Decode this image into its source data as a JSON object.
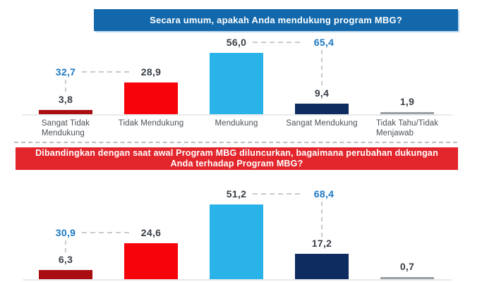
{
  "colors": {
    "header1_bg": "#1268ab",
    "header2_bg": "#e2262c",
    "annotation_blue": "#1b78c3",
    "value_text": "#3a3f46",
    "category_text": "#4b5158",
    "bar_dark_red": "#a90d12",
    "bar_red": "#f7030a",
    "bar_cyan": "#29b3e9",
    "bar_navy": "#0e2c5f",
    "bar_gray": "#9ba0a5"
  },
  "chart_data": [
    {
      "type": "bar",
      "title": "Secara umum, apakah Anda mendukung program MBG?",
      "categories": [
        "Sangat Tidak\nMendukung",
        "Tidak Mendukung",
        "Mendukung",
        "Sangat Mendukung",
        "Tidak Tahu/Tidak\nMenjawab"
      ],
      "values": [
        3.8,
        28.9,
        56.0,
        9.4,
        1.9
      ],
      "value_labels": [
        "3,8",
        "28,9",
        "56,0",
        "9,4",
        "1,9"
      ],
      "bar_colors": [
        "#a90d12",
        "#f7030a",
        "#29b3e9",
        "#0e2c5f",
        "#9ba0a5"
      ],
      "annotations": [
        {
          "label": "32,7",
          "value": 32.7,
          "connects_bars": [
            1,
            2
          ]
        },
        {
          "label": "65,4",
          "value": 65.4,
          "connects_bars": [
            3,
            4
          ]
        }
      ],
      "grid": false,
      "legend": false,
      "xlabel": "",
      "ylabel": ""
    },
    {
      "type": "bar",
      "title": "Dibandingkan dengan saat awal Program MBG diluncurkan, bagaimana perubahan dukungan Anda terhadap Program MBG?",
      "categories_visible": false,
      "values": [
        6.3,
        24.6,
        51.2,
        17.2,
        0.7
      ],
      "value_labels": [
        "6,3",
        "24,6",
        "51,2",
        "17,2",
        "0,7"
      ],
      "bar_colors": [
        "#a90d12",
        "#f7030a",
        "#29b3e9",
        "#0e2c5f",
        "#9ba0a5"
      ],
      "annotations": [
        {
          "label": "30,9",
          "value": 30.9,
          "connects_bars": [
            1,
            2
          ]
        },
        {
          "label": "68,4",
          "value": 68.4,
          "connects_bars": [
            3,
            4
          ]
        }
      ],
      "grid": false,
      "legend": false,
      "xlabel": "",
      "ylabel": ""
    }
  ]
}
